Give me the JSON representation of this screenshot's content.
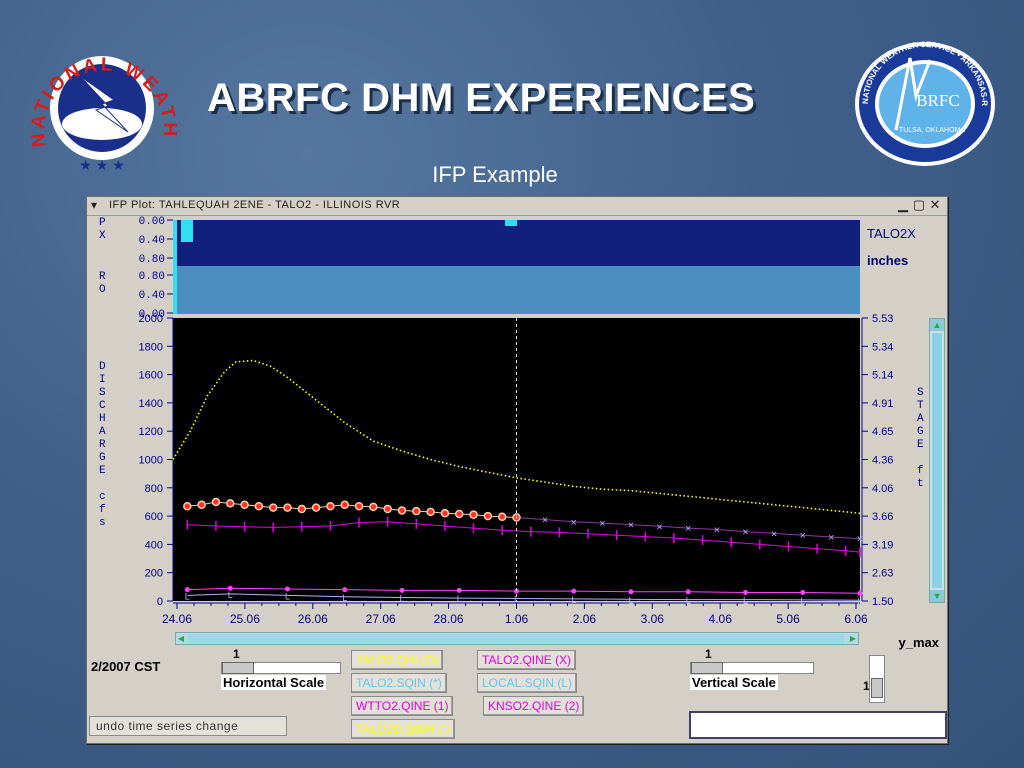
{
  "slide": {
    "title": "ABRFC DHM EXPERIENCES",
    "subtitle": "IFP Example"
  },
  "logos": {
    "left": {
      "text": "NATIONAL WEATHER SERVICE",
      "icon": "nws-lightning-emblem"
    },
    "right": {
      "ring_text": "NATIONAL WEATHER SERVICE • ARKANSAS-RED BASIN RIVER FORECAST CENTER",
      "center": "BRFC",
      "location": "TULSA, OKLAHOMA",
      "icon": "abrfc-emblem"
    }
  },
  "window": {
    "title": "IFP Plot:  TAHLEQUAH 2ENE      - TALO2    -  ILLINOIS RVR",
    "menu_icon": "chevron-down-icon",
    "controls": [
      "minimize-icon",
      "maximize-icon",
      "close-icon"
    ]
  },
  "precip_panel": {
    "px_label": "P\nX",
    "ro_label": "R\nO",
    "px_ticks": [
      "0.00",
      "0.40",
      "0.80"
    ],
    "ro_ticks": [
      "0.80",
      "0.40",
      "0.00"
    ],
    "station": "TALO2X",
    "units": "inches"
  },
  "chart_data": {
    "type": "line",
    "left_axis_label": "D\nI\nS\nC\nH\nA\nR\nG\nE\n\nc\nf\ns",
    "right_axis_label": "S\nT\nA\nG\nE\n\nf\nt",
    "left_ticks": [
      0,
      200,
      400,
      600,
      800,
      1000,
      1200,
      1400,
      1600,
      1800,
      2000
    ],
    "left_tick_labels": [
      "0",
      "200",
      "400",
      "600",
      "800",
      "1000",
      "1200",
      "1400",
      "1600",
      "1800",
      "2000"
    ],
    "right_ticks": [
      1.5,
      2.63,
      3.19,
      3.66,
      4.06,
      4.36,
      4.65,
      4.91,
      5.14,
      5.34,
      5.53
    ],
    "right_tick_labels": [
      "1.50",
      "2.63",
      "3.19",
      "3.66",
      "4.06",
      "4.36",
      "4.65",
      "4.91",
      "5.14",
      "5.34",
      "5.53"
    ],
    "x_tick_labels": [
      "24.06",
      "25.06",
      "26.06",
      "27.06",
      "28.06",
      "1.06",
      "2.06",
      "3.06",
      "4.06",
      "5.06",
      "6.06"
    ],
    "xlim": [
      0,
      12
    ],
    "ylim": [
      0,
      2000
    ],
    "current_time_x": 6.0,
    "series": [
      {
        "name": "TALO2.QINE (X)",
        "color": "#ffff00",
        "style": "dotted",
        "x": [
          0,
          0.3,
          0.6,
          0.9,
          1.1,
          1.4,
          1.7,
          2.0,
          2.5,
          3.0,
          3.5,
          4.0,
          4.5,
          5.0,
          5.5,
          6.0,
          6.5,
          7.0,
          7.5,
          8.0,
          9.0,
          10.0,
          11.0,
          12.0
        ],
        "y": [
          1000,
          1200,
          1450,
          1620,
          1690,
          1700,
          1660,
          1580,
          1420,
          1260,
          1130,
          1060,
          1000,
          950,
          910,
          870,
          840,
          810,
          790,
          780,
          740,
          700,
          660,
          620
        ]
      },
      {
        "name": "TALO2.QINE (X) markers",
        "color": "#8a3aa0",
        "marker": "x",
        "x": [
          6.0,
          6.5,
          7.0,
          7.5,
          8.0,
          8.5,
          9.0,
          9.5,
          10.0,
          10.5,
          11.0,
          11.5,
          12.0
        ],
        "y": [
          590,
          575,
          560,
          550,
          540,
          528,
          515,
          505,
          490,
          478,
          465,
          452,
          440
        ]
      },
      {
        "name": "TALO2.QIN (O)",
        "color": "#ffd0a0",
        "marker": "o",
        "x": [
          0.25,
          0.5,
          0.75,
          1.0,
          1.25,
          1.5,
          1.75,
          2.0,
          2.25,
          2.5,
          2.75,
          3.0,
          3.25,
          3.5,
          3.75,
          4.0,
          4.25,
          4.5,
          4.75,
          5.0,
          5.25,
          5.5,
          5.75,
          6.0
        ],
        "y": [
          670,
          680,
          700,
          690,
          680,
          670,
          660,
          660,
          650,
          660,
          670,
          680,
          670,
          665,
          650,
          640,
          635,
          630,
          620,
          615,
          610,
          600,
          595,
          590
        ]
      },
      {
        "name": "TALO2.SQIN (*)",
        "color": "#e000e0",
        "marker": "|",
        "x": [
          0.25,
          0.75,
          1.25,
          1.75,
          2.25,
          2.75,
          3.25,
          3.75,
          4.25,
          4.75,
          5.25,
          5.75,
          6.25,
          6.75,
          7.25,
          7.75,
          8.25,
          8.75,
          9.25,
          9.75,
          10.25,
          10.75,
          11.25,
          11.75,
          12.0
        ],
        "y": [
          540,
          530,
          525,
          520,
          525,
          530,
          555,
          560,
          545,
          530,
          515,
          500,
          490,
          485,
          475,
          465,
          455,
          445,
          430,
          415,
          400,
          385,
          370,
          355,
          345
        ]
      },
      {
        "name": "LOCAL.SQIN (L)",
        "color": "#b0b0ff",
        "marker": "L",
        "x": [
          0.25,
          1.0,
          2.0,
          3.0,
          4.0,
          5.0,
          6.0,
          7.0,
          8.0,
          9.0,
          10.0,
          11.0,
          12.0
        ],
        "y": [
          40,
          50,
          40,
          30,
          25,
          20,
          18,
          15,
          12,
          10,
          10,
          8,
          5
        ]
      },
      {
        "name": "WTTO2.QINE (1)",
        "color": "#ff40ff",
        "marker": "dot",
        "x": [
          0.25,
          1.0,
          2.0,
          3.0,
          4.0,
          5.0,
          6.0,
          7.0,
          8.0,
          9.0,
          10.0,
          11.0,
          12.0
        ],
        "y": [
          80,
          90,
          85,
          80,
          75,
          75,
          70,
          70,
          65,
          65,
          60,
          60,
          55
        ]
      }
    ]
  },
  "legend_buttons": [
    {
      "label": "TALO2.QIN  (O)",
      "color": "#ffff00"
    },
    {
      "label": "TALO2.QINE (X)",
      "color": "#e000e0"
    },
    {
      "label": "TALO2.SQIN (*)",
      "color": "#5fc8f0"
    },
    {
      "label": "LOCAL.SQIN (L)",
      "color": "#5fc8f0"
    },
    {
      "label": "WTTO2.QINE (1)",
      "color": "#e000e0"
    },
    {
      "label": "KNSO2.QINE (2)",
      "color": "#e000e0"
    },
    {
      "label": "TALO2D.QINH (:)",
      "color": "#ffff00"
    }
  ],
  "controls": {
    "date_label": "2/2007 CST",
    "hscale_value": "1",
    "hscale_label": "Horizontal Scale",
    "vscale_value": "1",
    "vscale_label": "Vertical Scale",
    "ymax_label": "y_max",
    "ymax_value": "1",
    "undo_label": "undo time series change",
    "status_text": ""
  }
}
